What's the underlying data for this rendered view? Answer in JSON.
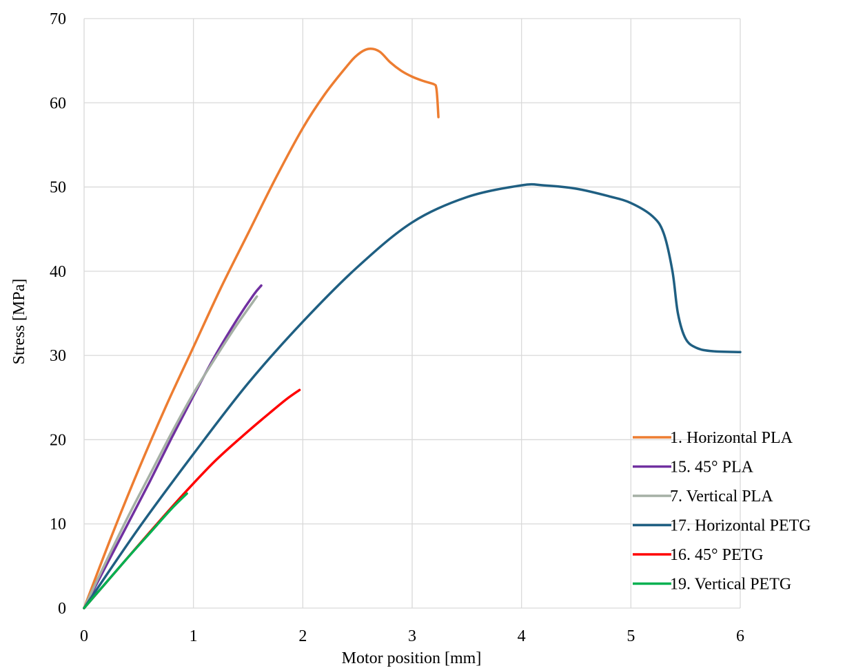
{
  "chart_data": {
    "type": "line",
    "title": "",
    "xlabel": "Motor position [mm]",
    "ylabel": "Stress [MPa]",
    "xlim": [
      0,
      6
    ],
    "ylim": [
      0,
      70
    ],
    "x_ticks": [
      0,
      1,
      2,
      3,
      4,
      5,
      6
    ],
    "y_ticks": [
      0,
      10,
      20,
      30,
      40,
      50,
      60,
      70
    ],
    "grid": true,
    "legend_position": "bottom-right",
    "series": [
      {
        "name": "1. Horizontal PLA",
        "color": "#ED7D31",
        "points": [
          [
            0,
            0
          ],
          [
            0.25,
            8.5
          ],
          [
            0.5,
            16.5
          ],
          [
            0.75,
            24
          ],
          [
            1.0,
            31
          ],
          [
            1.25,
            38
          ],
          [
            1.5,
            44.5
          ],
          [
            1.75,
            51
          ],
          [
            2.0,
            57
          ],
          [
            2.2,
            61
          ],
          [
            2.4,
            64.3
          ],
          [
            2.5,
            65.7
          ],
          [
            2.6,
            66.4
          ],
          [
            2.7,
            66.1
          ],
          [
            2.8,
            64.8
          ],
          [
            2.9,
            63.8
          ],
          [
            3.0,
            63.1
          ],
          [
            3.1,
            62.6
          ],
          [
            3.2,
            62.2
          ],
          [
            3.22,
            61.8
          ],
          [
            3.23,
            60.5
          ],
          [
            3.24,
            58.3
          ]
        ]
      },
      {
        "name": "15. 45° PLA",
        "color": "#7030A0",
        "points": [
          [
            0,
            0
          ],
          [
            0.2,
            5
          ],
          [
            0.4,
            10
          ],
          [
            0.6,
            15
          ],
          [
            0.8,
            20.2
          ],
          [
            1.0,
            25.2
          ],
          [
            1.2,
            30
          ],
          [
            1.4,
            34.3
          ],
          [
            1.55,
            37.2
          ],
          [
            1.62,
            38.3
          ]
        ]
      },
      {
        "name": "7. Vertical PLA",
        "color": "#A5B0A5",
        "points": [
          [
            0,
            0
          ],
          [
            0.2,
            5.5
          ],
          [
            0.4,
            10.8
          ],
          [
            0.6,
            15.8
          ],
          [
            0.8,
            20.8
          ],
          [
            1.0,
            25.5
          ],
          [
            1.2,
            29.7
          ],
          [
            1.4,
            33.7
          ],
          [
            1.58,
            37
          ]
        ]
      },
      {
        "name": "17. Horizontal PETG",
        "color": "#1F5F82",
        "points": [
          [
            0,
            0
          ],
          [
            0.5,
            9.5
          ],
          [
            1.0,
            18.3
          ],
          [
            1.5,
            26.7
          ],
          [
            2.0,
            34
          ],
          [
            2.5,
            40.5
          ],
          [
            3.0,
            45.8
          ],
          [
            3.5,
            48.8
          ],
          [
            4.0,
            50.2
          ],
          [
            4.2,
            50.2
          ],
          [
            4.5,
            49.8
          ],
          [
            4.8,
            48.9
          ],
          [
            5.0,
            48.1
          ],
          [
            5.2,
            46.5
          ],
          [
            5.3,
            44.5
          ],
          [
            5.38,
            40
          ],
          [
            5.43,
            35
          ],
          [
            5.5,
            32
          ],
          [
            5.6,
            30.9
          ],
          [
            5.75,
            30.5
          ],
          [
            6.0,
            30.4
          ]
        ]
      },
      {
        "name": "16. 45° PETG",
        "color": "#FF0000",
        "points": [
          [
            0,
            0
          ],
          [
            0.3,
            4.5
          ],
          [
            0.6,
            9
          ],
          [
            0.9,
            13.4
          ],
          [
            1.2,
            17.5
          ],
          [
            1.5,
            21
          ],
          [
            1.7,
            23.2
          ],
          [
            1.85,
            24.8
          ],
          [
            1.97,
            25.9
          ]
        ]
      },
      {
        "name": "19. Vertical PETG",
        "color": "#00B050",
        "points": [
          [
            0,
            0
          ],
          [
            0.2,
            3
          ],
          [
            0.4,
            6
          ],
          [
            0.6,
            8.9
          ],
          [
            0.8,
            11.8
          ],
          [
            0.94,
            13.6
          ]
        ]
      }
    ]
  }
}
